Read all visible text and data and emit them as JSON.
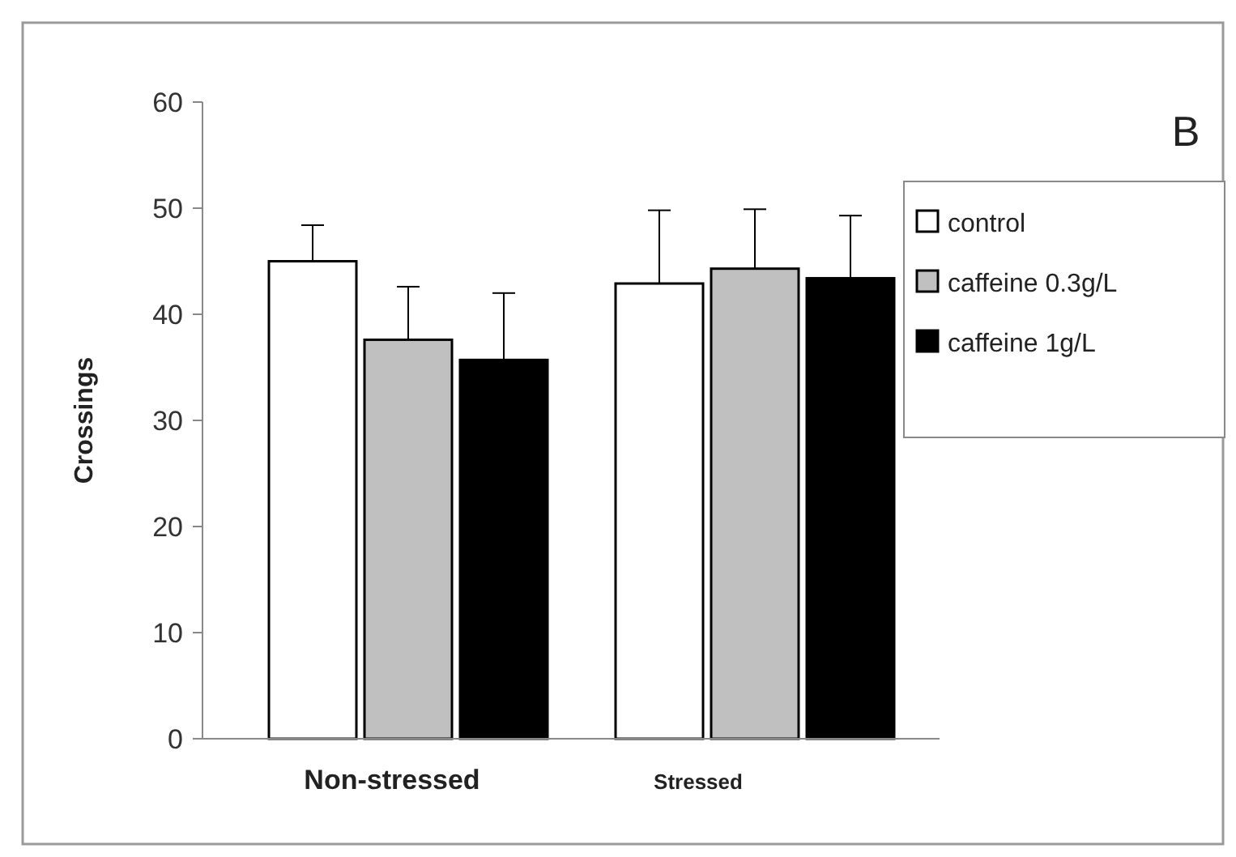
{
  "chart_data": {
    "type": "bar",
    "ylabel": "Crossings",
    "categories": [
      "Non-stressed",
      "Stressed"
    ],
    "series": [
      {
        "name": "control",
        "color": "#ffffff",
        "values": [
          45.0,
          42.9
        ],
        "errors": [
          3.4,
          6.9
        ]
      },
      {
        "name": "caffeine 0.3g/L",
        "color": "#c0c0c0",
        "values": [
          37.6,
          44.3
        ],
        "errors": [
          5.0,
          5.6
        ]
      },
      {
        "name": "caffeine 1g/L",
        "color": "#000000",
        "values": [
          35.7,
          43.4
        ],
        "errors": [
          6.3,
          5.9
        ]
      }
    ],
    "ylim": [
      0,
      60
    ],
    "yticks": [
      0,
      10,
      20,
      30,
      40,
      50,
      60
    ],
    "grid": false,
    "legend": "top right",
    "annotations": [
      "B"
    ]
  }
}
